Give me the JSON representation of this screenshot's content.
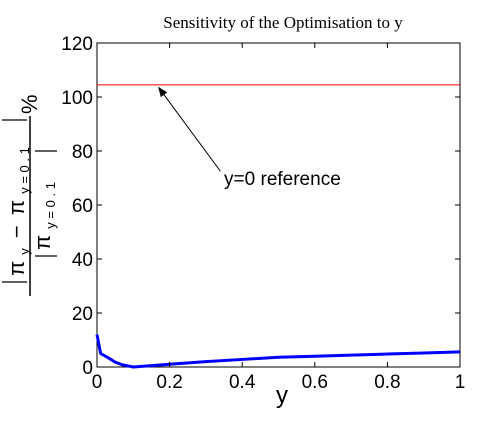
{
  "chart_data": {
    "type": "line",
    "title": "Sensitivity of the Optimisation to y",
    "xlabel": "y",
    "ylabel": {
      "numerator_pi": "π",
      "numerator_sub1": "y",
      "numerator_minus": "−",
      "numerator_pi2": "π",
      "numerator_sub2": "y = 0 . 1",
      "denominator_pi": "π",
      "denominator_sub": "y = 0 . 1",
      "percent": "%"
    },
    "xlim": [
      0,
      1
    ],
    "ylim": [
      0,
      120
    ],
    "x_ticks": [
      {
        "value": 0,
        "label": "0"
      },
      {
        "value": 0.2,
        "label": "0.2"
      },
      {
        "value": 0.4,
        "label": "0.4"
      },
      {
        "value": 0.6,
        "label": "0.6"
      },
      {
        "value": 0.8,
        "label": "0.8"
      },
      {
        "value": 1,
        "label": "1"
      }
    ],
    "y_ticks": [
      {
        "value": 0,
        "label": "0"
      },
      {
        "value": 20,
        "label": "20"
      },
      {
        "value": 40,
        "label": "40"
      },
      {
        "value": 60,
        "label": "60"
      },
      {
        "value": 80,
        "label": "80"
      },
      {
        "value": 100,
        "label": "100"
      },
      {
        "value": 120,
        "label": "120"
      }
    ],
    "series": [
      {
        "color": "#0000ff",
        "x": [
          0,
          0.01,
          0.03,
          0.05,
          0.07,
          0.1,
          0.2,
          0.3,
          0.4,
          0.5,
          0.6,
          0.7,
          0.8,
          0.9,
          1.0
        ],
        "y": [
          12,
          5,
          3.5,
          1.8,
          0.8,
          0,
          1,
          2,
          2.8,
          3.6,
          4,
          4.4,
          4.8,
          5.2,
          5.6
        ]
      },
      {
        "color": "#ff0000",
        "x": [
          0,
          1
        ],
        "y": [
          104.5,
          104.5
        ]
      }
    ],
    "annotations": [
      {
        "text": "y=0 reference",
        "text_at": {
          "x": 0.35,
          "y": 67.5
        },
        "arrow_from": {
          "x": 0.34,
          "y": 72.5
        },
        "arrow_to": {
          "x": 0.17,
          "y": 103.5
        }
      }
    ],
    "grid": false,
    "legend": "none"
  }
}
